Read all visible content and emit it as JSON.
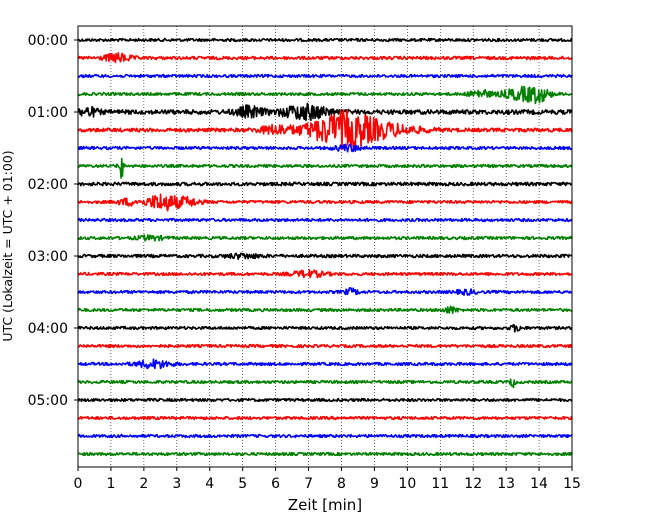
{
  "chart_data": {
    "type": "line",
    "title": "",
    "xlabel": "Zeit  [min]",
    "ylabel": "UTC (Lokalzeit = UTC + 01:00)",
    "xlim": [
      0,
      15
    ],
    "x_ticks": [
      "0",
      "1",
      "2",
      "3",
      "4",
      "5",
      "6",
      "7",
      "8",
      "9",
      "10",
      "11",
      "12",
      "13",
      "14",
      "15"
    ],
    "y_ticks": [
      {
        "label": "00:00",
        "row": 0
      },
      {
        "label": "01:00",
        "row": 4
      },
      {
        "label": "02:00",
        "row": 8
      },
      {
        "label": "03:00",
        "row": 12
      },
      {
        "label": "04:00",
        "row": 16
      },
      {
        "label": "05:00",
        "row": 20
      }
    ],
    "grid": "vertical dotted at every minute",
    "trace_minutes": 15,
    "colors": [
      "#000000",
      "#ff0000",
      "#0000ff",
      "#008000"
    ],
    "traces": [
      {
        "start": "00:00",
        "color": "#000000",
        "noise": 1.0,
        "events": []
      },
      {
        "start": "00:15",
        "color": "#ff0000",
        "noise": 1.1,
        "events": [
          {
            "t": 1.2,
            "amp": 4,
            "dur": 0.4
          }
        ]
      },
      {
        "start": "00:30",
        "color": "#0000ff",
        "noise": 1.0,
        "events": []
      },
      {
        "start": "00:45",
        "color": "#008000",
        "noise": 1.0,
        "events": [
          {
            "t": 12.2,
            "amp": 4,
            "dur": 0.3
          },
          {
            "t": 13.5,
            "amp": 6,
            "dur": 0.6
          },
          {
            "t": 14.0,
            "amp": 5,
            "dur": 0.3
          }
        ]
      },
      {
        "start": "01:00",
        "color": "#000000",
        "noise": 1.6,
        "events": [
          {
            "t": 0.3,
            "amp": 4,
            "dur": 0.3
          },
          {
            "t": 5.2,
            "amp": 5,
            "dur": 0.4
          },
          {
            "t": 6.9,
            "amp": 7,
            "dur": 0.7
          }
        ]
      },
      {
        "start": "01:15",
        "color": "#ff0000",
        "noise": 1.3,
        "events": [
          {
            "t": 6.0,
            "amp": 4,
            "dur": 0.5
          },
          {
            "t": 7.6,
            "amp": 8,
            "dur": 0.9
          },
          {
            "t": 8.3,
            "amp": 12,
            "dur": 0.8
          },
          {
            "t": 9.4,
            "amp": 5,
            "dur": 1.0
          }
        ]
      },
      {
        "start": "01:30",
        "color": "#0000ff",
        "noise": 1.0,
        "events": [
          {
            "t": 8.2,
            "amp": 3,
            "dur": 0.4
          }
        ]
      },
      {
        "start": "01:45",
        "color": "#008000",
        "noise": 1.0,
        "events": [
          {
            "t": 1.3,
            "amp": 18,
            "dur": 0.06
          }
        ]
      },
      {
        "start": "02:00",
        "color": "#000000",
        "noise": 1.2,
        "events": []
      },
      {
        "start": "02:15",
        "color": "#ff0000",
        "noise": 1.0,
        "events": [
          {
            "t": 1.5,
            "amp": 3,
            "dur": 0.3
          },
          {
            "t": 2.55,
            "amp": 8,
            "dur": 0.45
          },
          {
            "t": 3.3,
            "amp": 4,
            "dur": 0.4
          }
        ]
      },
      {
        "start": "02:30",
        "color": "#0000ff",
        "noise": 1.0,
        "events": []
      },
      {
        "start": "02:45",
        "color": "#008000",
        "noise": 1.0,
        "events": [
          {
            "t": 2.2,
            "amp": 2,
            "dur": 0.4
          }
        ]
      },
      {
        "start": "03:00",
        "color": "#000000",
        "noise": 1.1,
        "events": [
          {
            "t": 5.0,
            "amp": 2,
            "dur": 0.5
          }
        ]
      },
      {
        "start": "03:15",
        "color": "#ff0000",
        "noise": 1.0,
        "events": [
          {
            "t": 7.0,
            "amp": 3,
            "dur": 0.5
          }
        ]
      },
      {
        "start": "03:30",
        "color": "#0000ff",
        "noise": 1.0,
        "events": [
          {
            "t": 8.3,
            "amp": 3,
            "dur": 0.2
          },
          {
            "t": 11.8,
            "amp": 2,
            "dur": 0.3
          }
        ]
      },
      {
        "start": "03:45",
        "color": "#008000",
        "noise": 1.0,
        "events": [
          {
            "t": 11.3,
            "amp": 3,
            "dur": 0.2
          }
        ]
      },
      {
        "start": "04:00",
        "color": "#000000",
        "noise": 1.0,
        "events": [
          {
            "t": 13.3,
            "amp": 3,
            "dur": 0.15
          }
        ]
      },
      {
        "start": "04:15",
        "color": "#ff0000",
        "noise": 1.0,
        "events": []
      },
      {
        "start": "04:30",
        "color": "#0000ff",
        "noise": 1.0,
        "events": [
          {
            "t": 2.3,
            "amp": 4,
            "dur": 0.5
          }
        ]
      },
      {
        "start": "04:45",
        "color": "#008000",
        "noise": 1.0,
        "events": [
          {
            "t": 13.2,
            "amp": 6,
            "dur": 0.06
          }
        ]
      },
      {
        "start": "05:00",
        "color": "#000000",
        "noise": 1.0,
        "events": []
      },
      {
        "start": "05:15",
        "color": "#ff0000",
        "noise": 1.0,
        "events": []
      },
      {
        "start": "05:30",
        "color": "#0000ff",
        "noise": 1.0,
        "events": []
      },
      {
        "start": "05:45",
        "color": "#008000",
        "noise": 1.0,
        "events": []
      }
    ]
  }
}
